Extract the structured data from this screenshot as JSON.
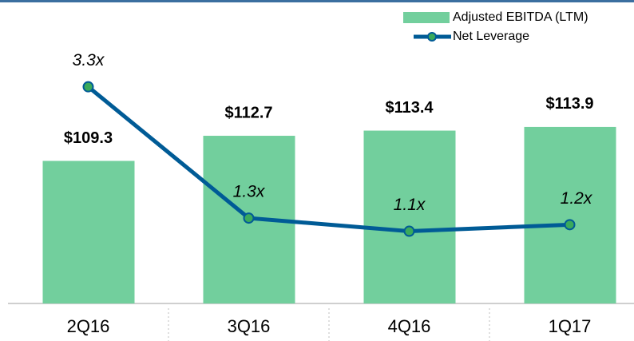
{
  "chart_data": {
    "type": "bar_line",
    "categories": [
      "2Q16",
      "3Q16",
      "4Q16",
      "1Q17"
    ],
    "series": [
      {
        "name": "Adjusted EBITDA (LTM)",
        "type": "bar",
        "color": "#72cf9d",
        "values": [
          109.3,
          112.7,
          113.4,
          113.9
        ],
        "value_labels": [
          "$109.3",
          "$112.7",
          "$113.4",
          "$113.9"
        ]
      },
      {
        "name": "Net Leverage",
        "type": "line",
        "axis": "y2",
        "color": "#005b96",
        "marker_color": "#3aaa5b",
        "values": [
          3.3,
          1.3,
          1.1,
          1.2
        ],
        "value_labels": [
          "3.3x",
          "1.3x",
          "1.1x",
          "1.2x"
        ]
      }
    ],
    "ylim": [
      90,
      130
    ],
    "y2lim": [
      0,
      4.5
    ],
    "legend": "top-right"
  }
}
